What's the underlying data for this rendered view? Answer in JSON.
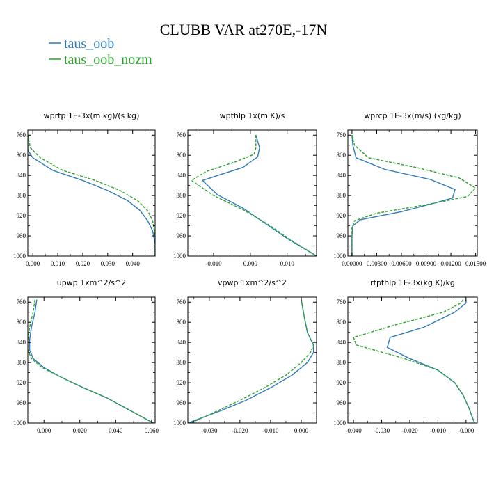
{
  "figure": {
    "title": "CLUBB VAR at270E,-17N"
  },
  "colors": {
    "taus_oob": "#2f7ab8",
    "taus_oob_nozm": "#2ca02c"
  },
  "chart_data": [
    {
      "type": "line",
      "title": "wprtp   1E-3x(m kg)/(s kg)",
      "xlim": [
        -0.002,
        0.049
      ],
      "ylim": [
        1000,
        750
      ],
      "x_ticks": [
        0.0,
        0.01,
        0.02,
        0.03,
        0.04
      ],
      "x_tick_labels": [
        "0.000",
        "0.010",
        "0.020",
        "0.030",
        "0.040"
      ],
      "y_ticks": [
        760,
        800,
        840,
        880,
        920,
        960,
        1000
      ],
      "y_tick_labels": [
        "760",
        "800",
        "840",
        "880",
        "920",
        "960",
        "1000"
      ],
      "series": [
        {
          "name": "taus_oob",
          "style": "solid",
          "x": [
            -0.002,
            -0.002,
            0.0,
            0.008,
            0.02,
            0.03,
            0.038,
            0.043,
            0.046,
            0.048,
            0.049,
            0.049
          ],
          "y": [
            760,
            790,
            805,
            830,
            850,
            870,
            890,
            910,
            930,
            950,
            975,
            1000
          ]
        },
        {
          "name": "taus_oob_nozm",
          "style": "dashed",
          "x": [
            -0.002,
            -0.001,
            0.003,
            0.012,
            0.025,
            0.035,
            0.042,
            0.046,
            0.048,
            0.049,
            0.049
          ],
          "y": [
            760,
            785,
            805,
            830,
            850,
            870,
            890,
            910,
            930,
            960,
            1000
          ]
        }
      ]
    },
    {
      "type": "line",
      "title": "wpthlp   1x(m K)/s",
      "xlim": [
        -0.017,
        0.018
      ],
      "ylim": [
        1000,
        750
      ],
      "x_ticks": [
        -0.01,
        0.0,
        0.01
      ],
      "x_tick_labels": [
        "-0.010",
        "0.000",
        "0.010"
      ],
      "y_ticks": [
        760,
        800,
        840,
        880,
        920,
        960,
        1000
      ],
      "y_tick_labels": [
        "760",
        "800",
        "840",
        "880",
        "920",
        "960",
        "1000"
      ],
      "series": [
        {
          "name": "taus_oob",
          "style": "solid",
          "x": [
            0.0015,
            0.0025,
            0.002,
            -0.002,
            -0.008,
            -0.013,
            -0.009,
            -0.002,
            0.004,
            0.01,
            0.018
          ],
          "y": [
            760,
            785,
            803,
            824,
            838,
            850,
            878,
            905,
            935,
            965,
            1000
          ]
        },
        {
          "name": "taus_oob_nozm",
          "style": "dashed",
          "x": [
            0.0015,
            0.0015,
            0.001,
            -0.004,
            -0.012,
            -0.016,
            -0.01,
            -0.002,
            0.005,
            0.011,
            0.018
          ],
          "y": [
            760,
            785,
            798,
            813,
            832,
            850,
            880,
            908,
            938,
            968,
            1000
          ]
        }
      ]
    },
    {
      "type": "line",
      "title": "wprcp   1E-3x(m/s) (kg/kg)",
      "xlim": [
        -0.0005,
        0.0152
      ],
      "ylim": [
        1000,
        750
      ],
      "x_ticks": [
        0.0,
        0.003,
        0.006,
        0.009,
        0.012,
        0.015
      ],
      "x_tick_labels": [
        "0.00000",
        "0.00300",
        "0.00600",
        "0.00900",
        "0.01200",
        "0.01500"
      ],
      "y_ticks": [
        760,
        800,
        840,
        880,
        920,
        960,
        1000
      ],
      "y_tick_labels": [
        "760",
        "800",
        "840",
        "880",
        "920",
        "960",
        "1000"
      ],
      "series": [
        {
          "name": "taus_oob",
          "style": "solid",
          "x": [
            0.0,
            0.0001,
            0.0005,
            0.004,
            0.0095,
            0.0125,
            0.0122,
            0.01,
            0.006,
            0.001,
            0.0001,
            0.0,
            0.0
          ],
          "y": [
            760,
            780,
            805,
            828,
            848,
            868,
            885,
            895,
            912,
            928,
            940,
            960,
            1000
          ]
        },
        {
          "name": "taus_oob_nozm",
          "style": "dashed",
          "x": [
            0.0,
            0.0003,
            0.002,
            0.008,
            0.013,
            0.015,
            0.014,
            0.009,
            0.003,
            0.0003,
            0.0,
            0.0
          ],
          "y": [
            760,
            780,
            805,
            825,
            845,
            865,
            882,
            898,
            915,
            930,
            945,
            1000
          ]
        }
      ]
    },
    {
      "type": "line",
      "title": "upwp   1xm^2/s^2",
      "xlim": [
        -0.009,
        0.062
      ],
      "ylim": [
        1000,
        750
      ],
      "x_ticks": [
        0.0,
        0.02,
        0.04,
        0.06
      ],
      "x_tick_labels": [
        "0.000",
        "0.020",
        "0.040",
        "0.060"
      ],
      "y_ticks": [
        760,
        800,
        840,
        880,
        920,
        960,
        1000
      ],
      "y_tick_labels": [
        "760",
        "800",
        "840",
        "880",
        "920",
        "960",
        "1000"
      ],
      "series": [
        {
          "name": "taus_oob",
          "style": "solid",
          "x": [
            -0.004,
            -0.005,
            -0.007,
            -0.008,
            -0.008,
            -0.006,
            0.0,
            0.01,
            0.022,
            0.035,
            0.048,
            0.061
          ],
          "y": [
            755,
            780,
            810,
            835,
            855,
            872,
            890,
            910,
            930,
            950,
            975,
            1000
          ]
        },
        {
          "name": "taus_oob_nozm",
          "style": "dashed",
          "x": [
            -0.005,
            -0.006,
            -0.008,
            -0.009,
            -0.009,
            -0.007,
            -0.001,
            0.01,
            0.022,
            0.035,
            0.048,
            0.061
          ],
          "y": [
            755,
            780,
            810,
            835,
            855,
            872,
            890,
            910,
            930,
            950,
            975,
            1000
          ]
        }
      ]
    },
    {
      "type": "line",
      "title": "vpwp   1xm^2/s^2",
      "xlim": [
        -0.037,
        0.005
      ],
      "ylim": [
        1000,
        750
      ],
      "x_ticks": [
        -0.03,
        -0.02,
        -0.01,
        0.0
      ],
      "x_tick_labels": [
        "-0.030",
        "-0.020",
        "-0.010",
        "0.000"
      ],
      "y_ticks": [
        760,
        800,
        840,
        880,
        920,
        960,
        1000
      ],
      "y_tick_labels": [
        "760",
        "800",
        "840",
        "880",
        "920",
        "960",
        "1000"
      ],
      "series": [
        {
          "name": "taus_oob",
          "style": "solid",
          "x": [
            0.0,
            0.001,
            0.002,
            0.004,
            0.004,
            0.002,
            -0.003,
            -0.01,
            -0.018,
            -0.026,
            -0.037
          ],
          "y": [
            755,
            790,
            820,
            845,
            860,
            880,
            905,
            930,
            955,
            975,
            1000
          ]
        },
        {
          "name": "taus_oob_nozm",
          "style": "dashed",
          "x": [
            0.0,
            0.001,
            0.002,
            0.004,
            0.003,
            0.0,
            -0.005,
            -0.012,
            -0.02,
            -0.027,
            -0.036
          ],
          "y": [
            755,
            790,
            820,
            845,
            860,
            880,
            905,
            930,
            955,
            975,
            1000
          ]
        }
      ]
    },
    {
      "type": "line",
      "title": "rtpthlp   1E-3x(kg K)/kg",
      "xlim": [
        -0.042,
        0.004
      ],
      "ylim": [
        1000,
        750
      ],
      "x_ticks": [
        -0.04,
        -0.03,
        -0.02,
        -0.01,
        0.0
      ],
      "x_tick_labels": [
        "-0.040",
        "-0.030",
        "-0.020",
        "-0.010",
        "-0.000"
      ],
      "y_ticks": [
        760,
        800,
        840,
        880,
        920,
        960,
        1000
      ],
      "y_tick_labels": [
        "760",
        "800",
        "840",
        "880",
        "920",
        "960",
        "1000"
      ],
      "series": [
        {
          "name": "taus_oob",
          "style": "solid",
          "x": [
            0.0,
            0.0,
            -0.004,
            -0.015,
            -0.027,
            -0.028,
            -0.02,
            -0.01,
            -0.004,
            -0.001,
            0.001,
            0.003
          ],
          "y": [
            755,
            762,
            780,
            810,
            830,
            850,
            872,
            895,
            920,
            945,
            970,
            1000
          ]
        },
        {
          "name": "taus_oob_nozm",
          "style": "dashed",
          "x": [
            -0.001,
            -0.002,
            -0.008,
            -0.025,
            -0.04,
            -0.039,
            -0.022,
            -0.01,
            -0.004,
            -0.001,
            0.001,
            0.003
          ],
          "y": [
            755,
            762,
            780,
            805,
            830,
            845,
            872,
            895,
            920,
            945,
            970,
            1000
          ]
        }
      ]
    }
  ]
}
